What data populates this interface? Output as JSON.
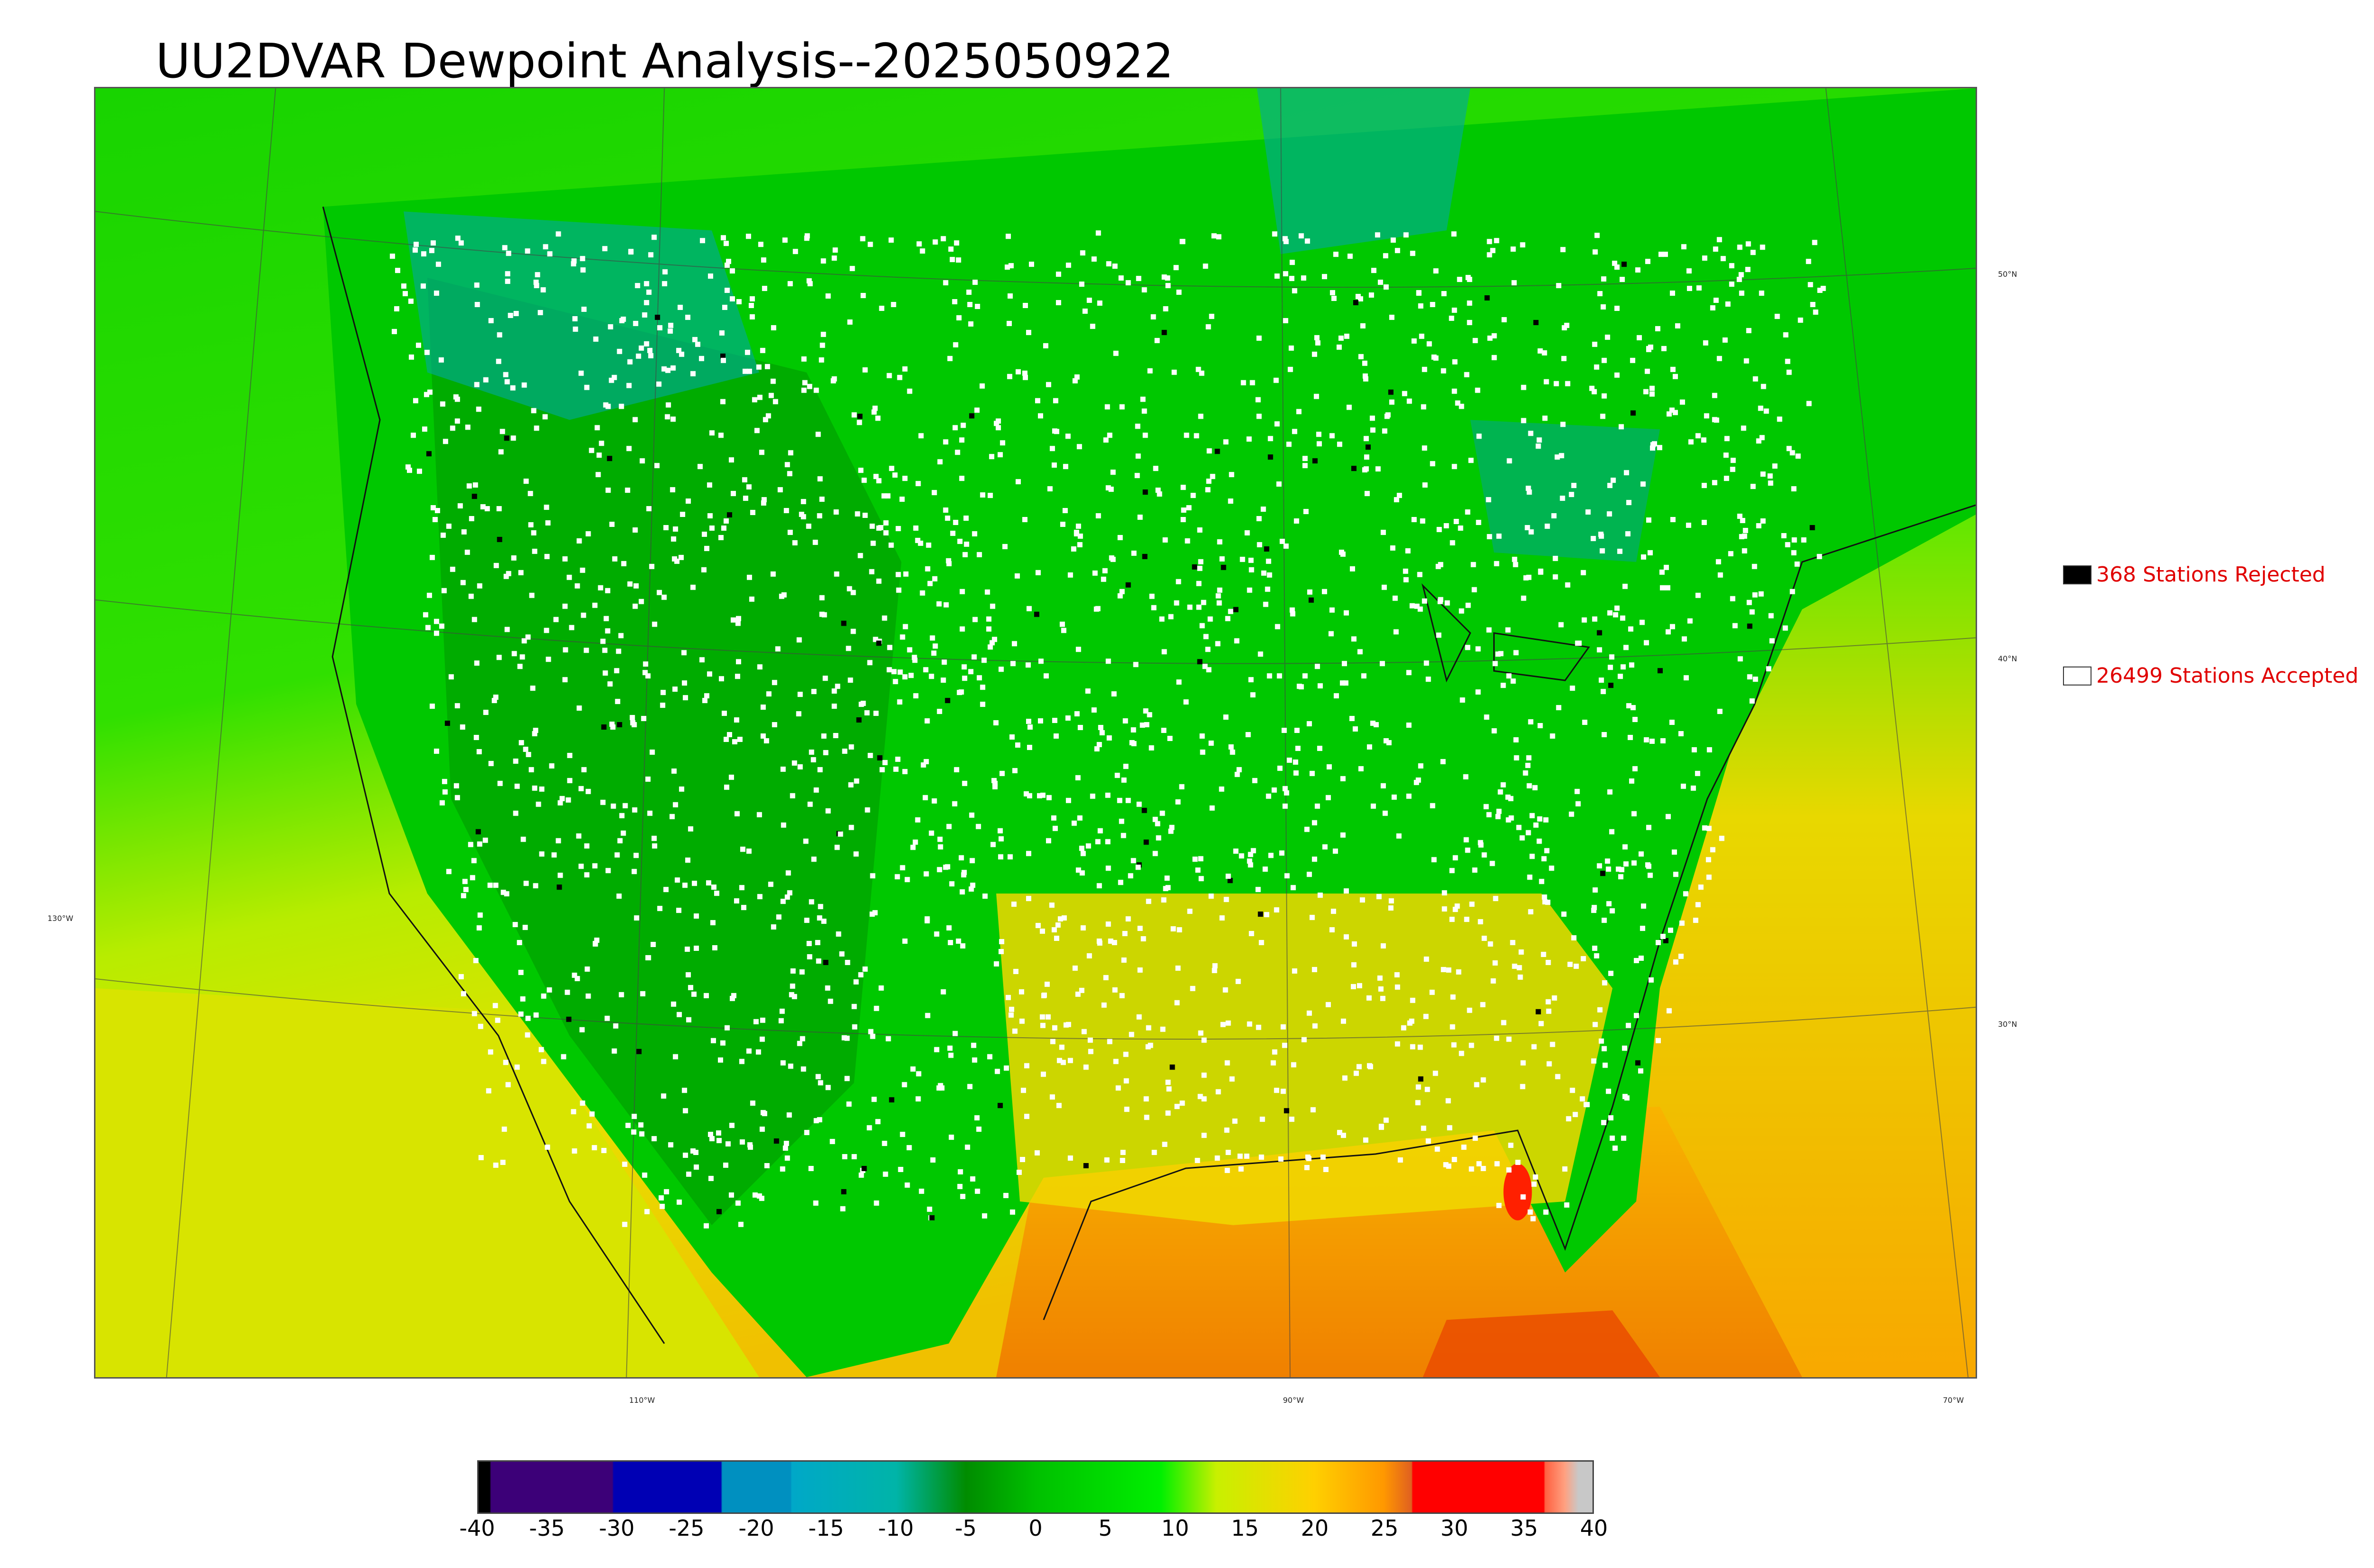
{
  "title": "UU2DVAR Dewpoint Analysis--2025050922",
  "lat_labels": [
    "50°N",
    "40°N",
    "30°N"
  ],
  "lon_labels": [
    "130°W",
    "110°W",
    "90°W",
    "70°W"
  ],
  "legend": {
    "rejected": {
      "label": "368 Stations Rejected",
      "swatch_color": "#000000"
    },
    "accepted": {
      "label": "26499 Stations Accepted",
      "swatch_color": "#ffffff"
    },
    "text_color": "#e00000"
  },
  "colorbar": {
    "ticks": [
      "-40",
      "-35",
      "-30",
      "-25",
      "-20",
      "-15",
      "-10",
      "-5",
      "0",
      "5",
      "10",
      "15",
      "20",
      "25",
      "30",
      "35",
      "40"
    ],
    "range": [
      -40,
      40
    ],
    "stops": [
      {
        "value": -40,
        "color": "#000000"
      },
      {
        "value": -39.2,
        "color": "#000000"
      },
      {
        "value": -39.1,
        "color": "#3c0078"
      },
      {
        "value": -30.4,
        "color": "#3c0078"
      },
      {
        "value": -30.3,
        "color": "#0000b4"
      },
      {
        "value": -22.6,
        "color": "#0000b4"
      },
      {
        "value": -22.5,
        "color": "#0090c0"
      },
      {
        "value": -17.6,
        "color": "#0090c0"
      },
      {
        "value": -17.5,
        "color": "#00a8c8"
      },
      {
        "value": -10,
        "color": "#00b4a8"
      },
      {
        "value": -5,
        "color": "#008c00"
      },
      {
        "value": 0,
        "color": "#00c000"
      },
      {
        "value": 9,
        "color": "#00f000"
      },
      {
        "value": 13,
        "color": "#c8f000"
      },
      {
        "value": 20,
        "color": "#ffd000"
      },
      {
        "value": 25,
        "color": "#ff9800"
      },
      {
        "value": 27,
        "color": "#e06020"
      },
      {
        "value": 27.1,
        "color": "#ff0000"
      },
      {
        "value": 36.5,
        "color": "#ff0000"
      },
      {
        "value": 36.6,
        "color": "#ff6040"
      },
      {
        "value": 38,
        "color": "#ffa080"
      },
      {
        "value": 39,
        "color": "#c8c8c8"
      },
      {
        "value": 40,
        "color": "#c8c8c8"
      }
    ]
  }
}
